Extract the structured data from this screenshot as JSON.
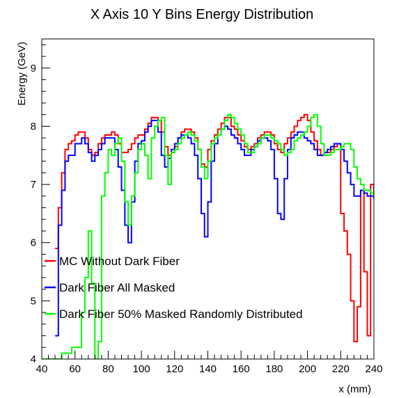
{
  "chart_data": {
    "type": "line",
    "title": "X Axis 10 Y Bins Energy Distribution",
    "xlabel": "x (mm)",
    "ylabel": "Energy (GeV)",
    "xlim": [
      40,
      240
    ],
    "ylim": [
      4,
      9.5
    ],
    "x_ticks": [
      "40",
      "60",
      "80",
      "100",
      "120",
      "140",
      "160",
      "180",
      "200",
      "220",
      "240"
    ],
    "y_ticks": [
      "4",
      "5",
      "6",
      "7",
      "8",
      "9"
    ],
    "grid": false,
    "legend": "left-lower",
    "series": [
      {
        "name": "MC Without Dark Fiber",
        "color": "#ff0000",
        "x": [
          48,
          50,
          52,
          54,
          56,
          58,
          60,
          62,
          64,
          66,
          68,
          70,
          72,
          74,
          76,
          78,
          80,
          82,
          84,
          86,
          88,
          90,
          92,
          94,
          96,
          98,
          100,
          102,
          104,
          106,
          108,
          110,
          112,
          114,
          116,
          118,
          120,
          122,
          124,
          126,
          128,
          130,
          132,
          134,
          136,
          138,
          140,
          142,
          144,
          146,
          148,
          150,
          152,
          154,
          156,
          158,
          160,
          162,
          164,
          166,
          168,
          170,
          172,
          174,
          176,
          178,
          180,
          182,
          184,
          186,
          188,
          190,
          192,
          194,
          196,
          198,
          200,
          202,
          204,
          206,
          208,
          210,
          212,
          214,
          216,
          218,
          220,
          222,
          224,
          226,
          228,
          230,
          232,
          234,
          236,
          238,
          240
        ],
        "y": [
          5.9,
          6.6,
          7.2,
          7.6,
          7.7,
          7.75,
          7.85,
          7.9,
          7.9,
          7.8,
          7.6,
          7.5,
          7.55,
          7.7,
          7.8,
          7.85,
          7.85,
          7.9,
          7.85,
          7.7,
          7.55,
          7.55,
          7.6,
          7.7,
          7.8,
          7.85,
          7.85,
          7.95,
          8.05,
          8.15,
          8.15,
          8.1,
          7.9,
          7.65,
          7.5,
          7.55,
          7.65,
          7.8,
          7.9,
          7.95,
          7.95,
          7.9,
          7.8,
          7.6,
          7.35,
          7.3,
          7.6,
          7.75,
          7.85,
          7.95,
          8.05,
          8.15,
          8.15,
          8.0,
          7.95,
          7.85,
          7.75,
          7.65,
          7.6,
          7.65,
          7.7,
          7.8,
          7.85,
          7.9,
          7.9,
          7.85,
          7.7,
          7.6,
          7.55,
          7.7,
          7.8,
          7.9,
          8.0,
          8.1,
          8.15,
          8.2,
          8.1,
          7.9,
          7.75,
          7.6,
          7.5,
          7.55,
          7.55,
          7.6,
          7.65,
          7.7,
          6.5,
          6.2,
          5.8,
          5.0,
          4.3,
          4.9,
          6.9,
          5.5,
          4.4,
          7.0,
          6.8
        ],
        "values_note": ""
      },
      {
        "name": "Dark Fiber All Masked",
        "color": "#0000ff",
        "x": [
          48,
          50,
          52,
          54,
          56,
          58,
          60,
          62,
          64,
          66,
          68,
          70,
          72,
          74,
          76,
          78,
          80,
          82,
          84,
          86,
          88,
          90,
          92,
          94,
          96,
          98,
          100,
          102,
          104,
          106,
          108,
          110,
          112,
          114,
          116,
          118,
          120,
          122,
          124,
          126,
          128,
          130,
          132,
          134,
          136,
          138,
          140,
          142,
          144,
          146,
          148,
          150,
          152,
          154,
          156,
          158,
          160,
          162,
          164,
          166,
          168,
          170,
          172,
          174,
          176,
          178,
          180,
          182,
          184,
          186,
          188,
          190,
          192,
          194,
          196,
          198,
          200,
          202,
          204,
          206,
          208,
          210,
          212,
          214,
          216,
          218,
          220,
          222,
          224,
          226,
          228,
          230,
          232,
          234,
          236,
          238,
          240
        ],
        "y": [
          4.4,
          6.3,
          6.9,
          7.4,
          7.5,
          7.5,
          7.7,
          7.7,
          7.8,
          7.7,
          7.55,
          7.4,
          7.5,
          7.6,
          7.7,
          7.8,
          7.8,
          7.8,
          7.6,
          7.3,
          6.9,
          6.3,
          6.0,
          6.7,
          7.4,
          7.7,
          7.75,
          7.9,
          8.0,
          8.1,
          8.1,
          7.9,
          7.5,
          7.3,
          7.45,
          7.6,
          7.7,
          7.8,
          7.85,
          7.85,
          7.8,
          7.7,
          7.5,
          7.1,
          6.5,
          6.1,
          6.7,
          7.4,
          7.7,
          7.85,
          7.95,
          8.0,
          7.95,
          7.85,
          7.8,
          7.7,
          7.6,
          7.5,
          7.5,
          7.6,
          7.65,
          7.75,
          7.8,
          7.8,
          7.75,
          7.6,
          7.1,
          6.5,
          6.4,
          7.1,
          7.6,
          7.8,
          7.85,
          7.9,
          7.9,
          7.8,
          7.75,
          7.7,
          7.6,
          7.5,
          7.5,
          7.55,
          7.6,
          7.65,
          7.7,
          7.7,
          7.6,
          7.4,
          7.2,
          7.0,
          6.8,
          6.8,
          6.9,
          6.85,
          6.8,
          6.8,
          6.75
        ]
      },
      {
        "name": "Dark Fiber 50% Masked Randomly Distributed",
        "color": "#00ff00",
        "x": [
          40,
          46,
          52,
          58,
          62,
          64,
          66,
          68,
          70,
          72,
          74,
          76,
          78,
          80,
          82,
          84,
          86,
          88,
          90,
          92,
          94,
          96,
          98,
          100,
          102,
          104,
          106,
          108,
          110,
          112,
          114,
          116,
          118,
          120,
          122,
          124,
          126,
          128,
          130,
          132,
          134,
          136,
          138,
          140,
          142,
          144,
          146,
          148,
          150,
          152,
          154,
          156,
          158,
          160,
          162,
          164,
          166,
          168,
          170,
          172,
          174,
          176,
          178,
          180,
          182,
          184,
          186,
          188,
          190,
          192,
          194,
          196,
          198,
          200,
          202,
          204,
          206,
          208,
          210,
          212,
          214,
          216,
          218,
          220,
          222,
          224,
          226,
          228,
          230,
          232,
          234,
          236,
          238,
          240
        ],
        "y": [
          4.0,
          4.0,
          4.1,
          4.2,
          4.2,
          4.8,
          5.4,
          6.2,
          5.3,
          4.0,
          4.3,
          6.8,
          7.2,
          7.6,
          7.5,
          7.7,
          7.8,
          7.4,
          6.7,
          6.3,
          6.8,
          7.2,
          7.6,
          7.7,
          7.5,
          7.1,
          7.8,
          8.0,
          8.1,
          8.15,
          7.5,
          7.0,
          7.55,
          7.6,
          7.7,
          7.8,
          7.85,
          7.9,
          7.85,
          7.75,
          7.6,
          7.3,
          7.1,
          7.4,
          7.7,
          7.8,
          7.85,
          7.95,
          8.1,
          8.2,
          8.15,
          8.05,
          7.95,
          7.85,
          7.7,
          7.55,
          7.55,
          7.65,
          7.7,
          7.8,
          7.85,
          7.85,
          7.8,
          7.75,
          7.7,
          7.6,
          7.5,
          7.55,
          7.6,
          7.75,
          7.8,
          7.85,
          7.9,
          8.0,
          8.15,
          8.2,
          8.0,
          7.7,
          7.5,
          7.5,
          7.55,
          7.6,
          7.6,
          7.65,
          7.7,
          7.7,
          7.6,
          7.3,
          7.1,
          7.0,
          6.9,
          6.9,
          6.85,
          6.8
        ]
      }
    ]
  }
}
